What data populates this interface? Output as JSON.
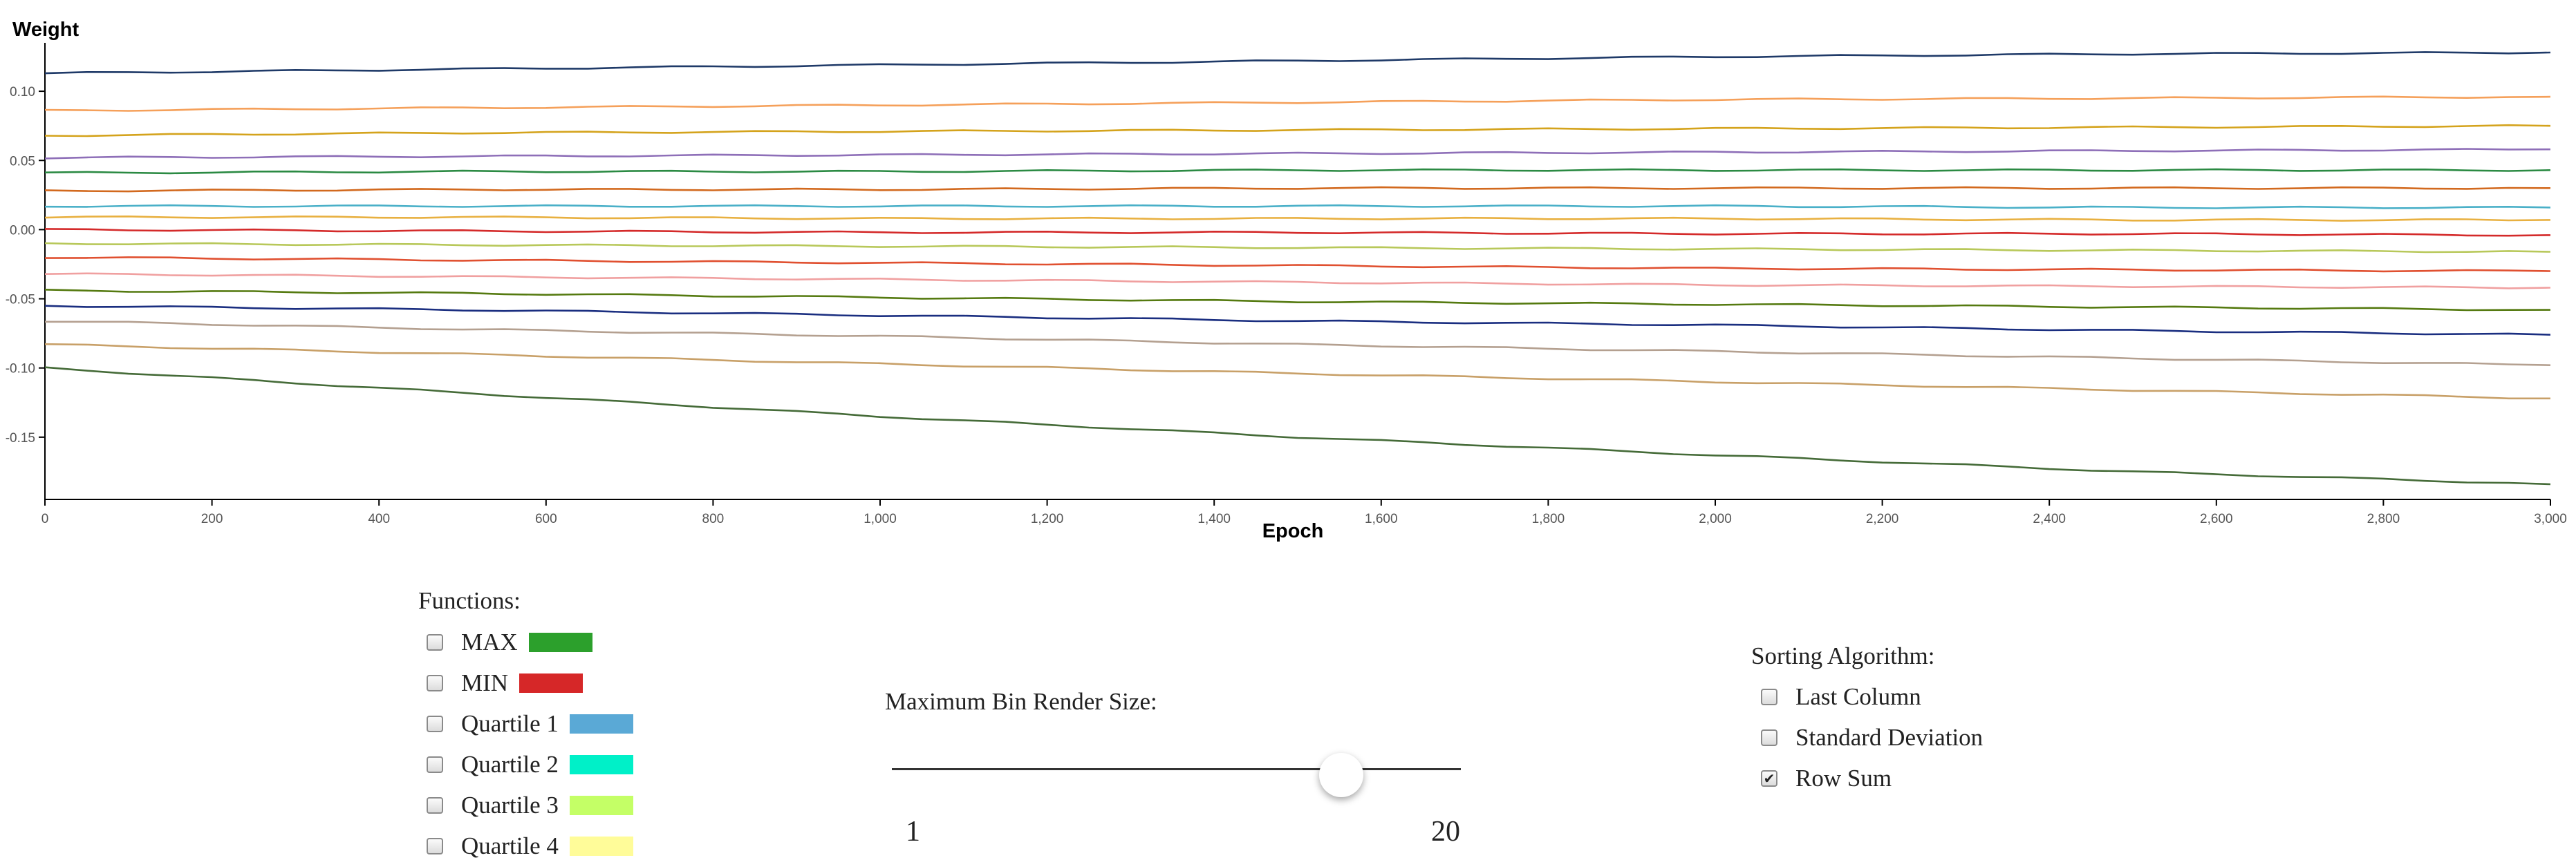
{
  "chart_data": {
    "type": "line",
    "ylabel": "Weight",
    "xlabel": "Epoch",
    "xlim": [
      0,
      3000
    ],
    "ylim": [
      -0.195,
      0.135
    ],
    "x_ticks": [
      0,
      200,
      400,
      600,
      800,
      1000,
      1200,
      1400,
      1600,
      1800,
      2000,
      2200,
      2400,
      2600,
      2800,
      3000
    ],
    "x_tick_labels": [
      "0",
      "200",
      "400",
      "600",
      "800",
      "1,000",
      "1,200",
      "1,400",
      "1,600",
      "1,800",
      "2,000",
      "2,200",
      "2,400",
      "2,600",
      "2,800",
      "3,000"
    ],
    "y_ticks": [
      0.1,
      0.05,
      0.0,
      -0.05,
      -0.1,
      -0.15
    ],
    "y_tick_labels": [
      "0.10",
      "0.05",
      "0.00",
      "-0.05",
      "-0.10",
      "-0.15"
    ],
    "grid": false,
    "legend": "none",
    "x": [
      0,
      500,
      1000,
      1500,
      2000,
      2500,
      3000
    ],
    "series": [
      {
        "color": "#1f3a68",
        "values": [
          0.113,
          0.116,
          0.119,
          0.122,
          0.125,
          0.127,
          0.128
        ]
      },
      {
        "color": "#f5a05a",
        "values": [
          0.086,
          0.088,
          0.09,
          0.092,
          0.094,
          0.095,
          0.096
        ]
      },
      {
        "color": "#d4a31c",
        "values": [
          0.068,
          0.07,
          0.071,
          0.072,
          0.073,
          0.074,
          0.075
        ]
      },
      {
        "color": "#8e6fb8",
        "values": [
          0.052,
          0.053,
          0.054,
          0.055,
          0.056,
          0.057,
          0.058
        ]
      },
      {
        "color": "#2b8a43",
        "values": [
          0.041,
          0.042,
          0.042,
          0.043,
          0.043,
          0.043,
          0.043
        ]
      },
      {
        "color": "#d2691e",
        "values": [
          0.028,
          0.029,
          0.029,
          0.03,
          0.03,
          0.03,
          0.03
        ]
      },
      {
        "color": "#4ab0c8",
        "values": [
          0.017,
          0.017,
          0.017,
          0.017,
          0.017,
          0.016,
          0.016
        ]
      },
      {
        "color": "#e8b040",
        "values": [
          0.009,
          0.009,
          0.008,
          0.008,
          0.008,
          0.007,
          0.007
        ]
      },
      {
        "color": "#d42a2a",
        "values": [
          0.0,
          -0.001,
          -0.002,
          -0.002,
          -0.003,
          -0.003,
          -0.004
        ]
      },
      {
        "color": "#b8c85a",
        "values": [
          -0.01,
          -0.011,
          -0.012,
          -0.013,
          -0.014,
          -0.015,
          -0.016
        ]
      },
      {
        "color": "#e05030",
        "values": [
          -0.02,
          -0.022,
          -0.024,
          -0.026,
          -0.028,
          -0.029,
          -0.03
        ]
      },
      {
        "color": "#f0a0a0",
        "values": [
          -0.032,
          -0.034,
          -0.036,
          -0.038,
          -0.04,
          -0.041,
          -0.042
        ]
      },
      {
        "color": "#557a10",
        "values": [
          -0.044,
          -0.046,
          -0.049,
          -0.052,
          -0.054,
          -0.056,
          -0.058
        ]
      },
      {
        "color": "#1a2e80",
        "values": [
          -0.055,
          -0.058,
          -0.062,
          -0.066,
          -0.069,
          -0.073,
          -0.076
        ]
      },
      {
        "color": "#b4a090",
        "values": [
          -0.066,
          -0.072,
          -0.077,
          -0.083,
          -0.088,
          -0.093,
          -0.098
        ]
      },
      {
        "color": "#c8a068",
        "values": [
          -0.083,
          -0.09,
          -0.097,
          -0.104,
          -0.11,
          -0.116,
          -0.122
        ]
      },
      {
        "color": "#456b38",
        "values": [
          -0.1,
          -0.118,
          -0.135,
          -0.15,
          -0.163,
          -0.175,
          -0.184
        ]
      }
    ]
  },
  "functions": {
    "title": "Functions:",
    "items": [
      {
        "label": "MAX",
        "color": "#2ca02c",
        "checked": false
      },
      {
        "label": "MIN",
        "color": "#d62728",
        "checked": false
      },
      {
        "label": "Quartile 1",
        "color": "#5aa9d6",
        "checked": false
      },
      {
        "label": "Quartile 2",
        "color": "#00f0c8",
        "checked": false
      },
      {
        "label": "Quartile 3",
        "color": "#c4ff66",
        "checked": false
      },
      {
        "label": "Quartile 4",
        "color": "#fffc99",
        "checked": false
      }
    ]
  },
  "bin_render": {
    "title": "Maximum Bin Render Size:",
    "min_label": "1",
    "max_label": "20",
    "min": 1,
    "max": 20,
    "value": 16
  },
  "sorting": {
    "title": "Sorting Algorithm:",
    "options": [
      {
        "label": "Last Column",
        "checked": false
      },
      {
        "label": "Standard Deviation",
        "checked": false
      },
      {
        "label": "Row Sum",
        "checked": true
      }
    ],
    "check_mark": "✔"
  }
}
